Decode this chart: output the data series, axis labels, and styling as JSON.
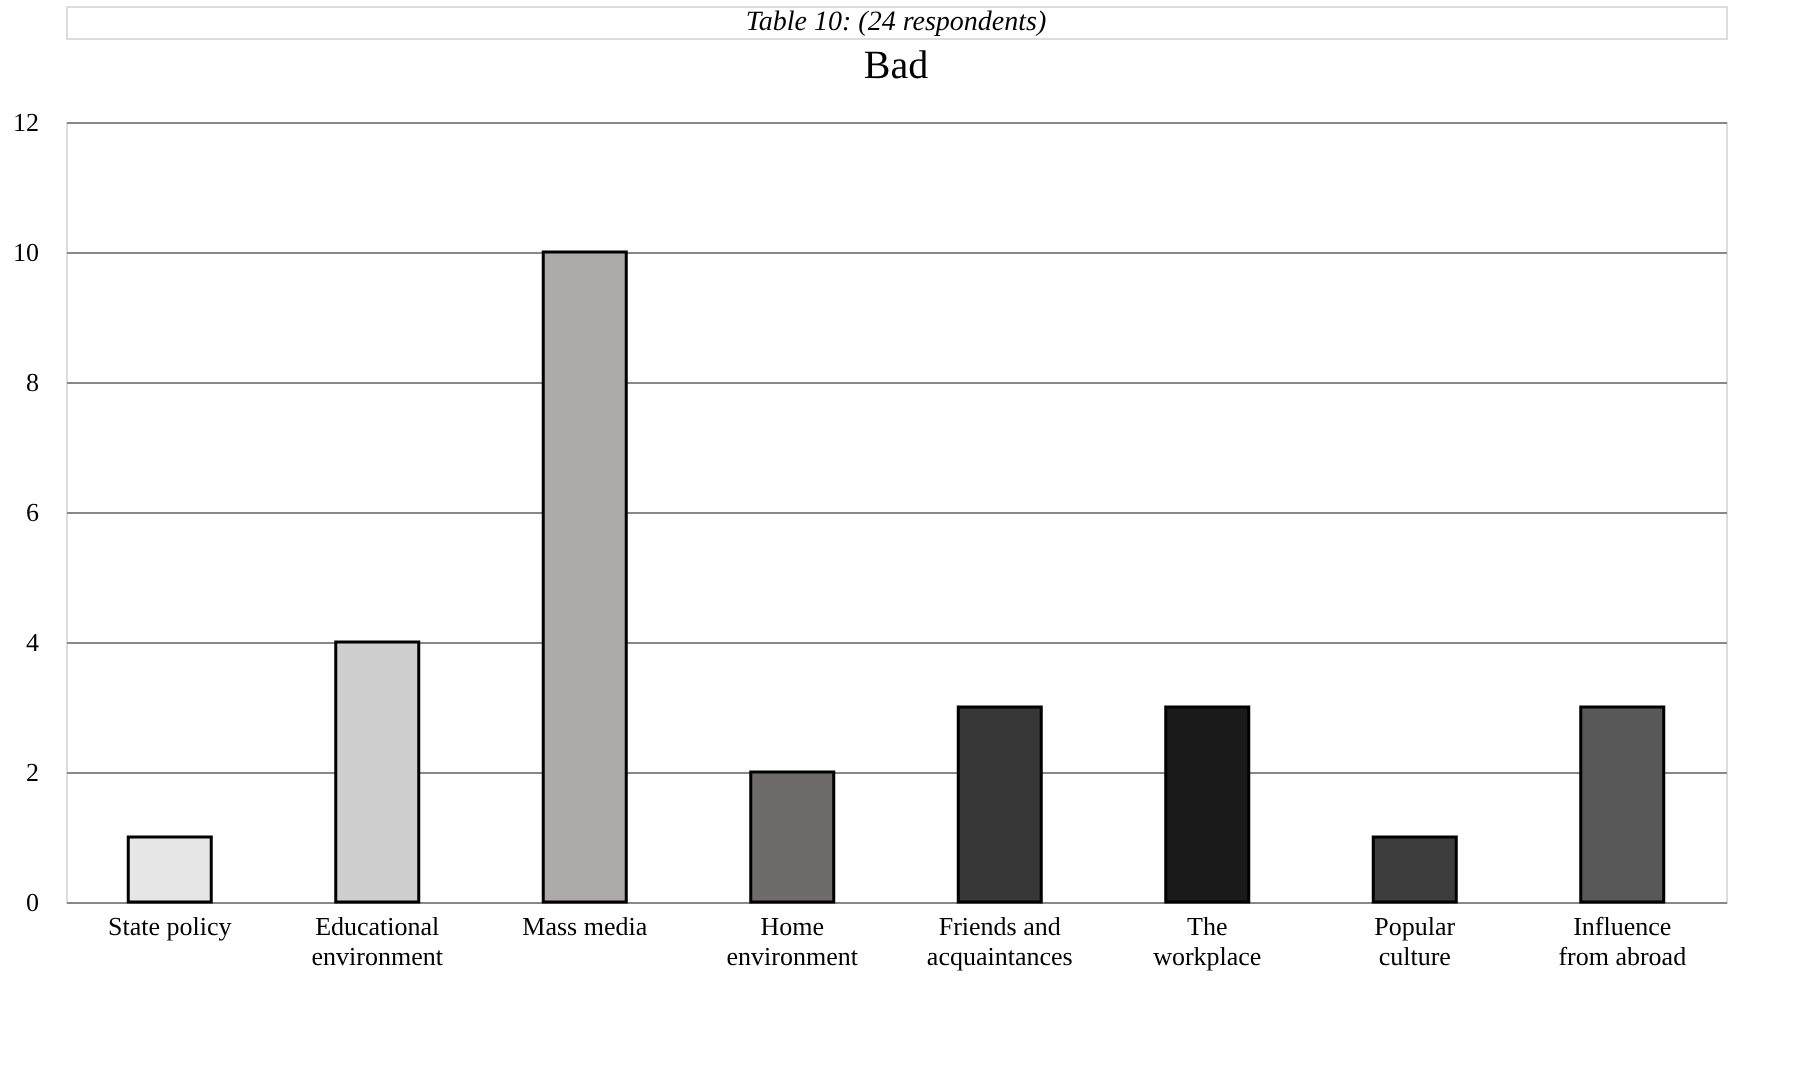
{
  "chart_data": {
    "type": "bar",
    "title": "Bad",
    "annotations": [
      "Table 10: (24 respondents)"
    ],
    "categories": [
      "State policy",
      "Educational\nenvironment",
      "Mass media",
      "Home\nenvironment",
      "Friends and\nacquaintances",
      "The\nworkplace",
      "Popular\nculture",
      "Influence\nfrom abroad"
    ],
    "values": [
      1,
      4,
      10,
      2,
      3,
      3,
      1,
      3
    ],
    "colors": [
      "#e6e6e6",
      "#d0cfd0",
      "#aeaaaa",
      "#6f6b6b",
      "#383737",
      "#1a1a1a",
      "#3d3d3d",
      "#585858"
    ],
    "ylim": [
      0,
      12
    ],
    "yticks": [
      0,
      2,
      4,
      6,
      8,
      10,
      12
    ],
    "grid": "y",
    "legend": false
  }
}
